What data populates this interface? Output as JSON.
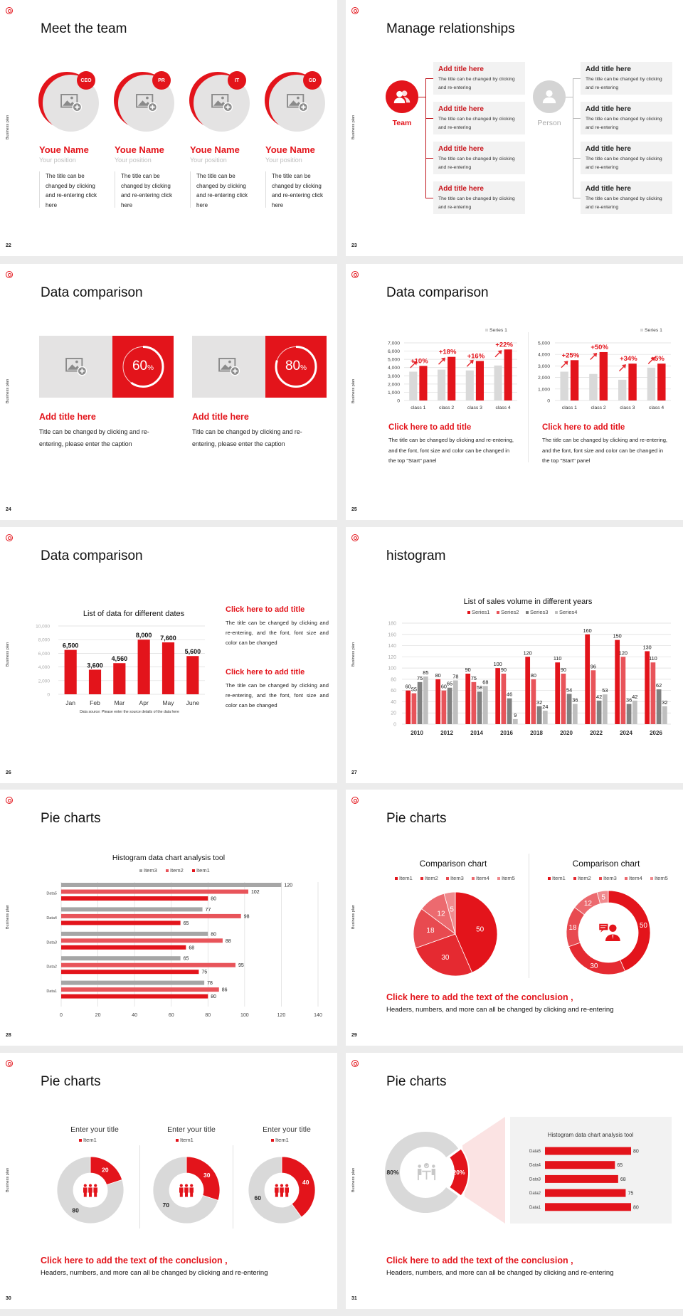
{
  "common": {
    "side_label": "Business plan",
    "colors": {
      "accent": "#e3141b",
      "accent_light": "#e8545a",
      "gray": "#d9d9d9",
      "dark_gray": "#808080",
      "panel": "#f2f2f2"
    }
  },
  "slides": [
    {
      "number": "22",
      "title": "Meet the team",
      "members": [
        {
          "badge": "CEO",
          "name": "Youe Name",
          "position": "Your position",
          "desc": "The title can be changed by clicking and re-entering click here",
          "icon": "image-placeholder-icon"
        },
        {
          "badge": "PR",
          "name": "Youe Name",
          "position": "Your position",
          "desc": "The title can be changed by clicking and re-entering click here",
          "icon": "image-placeholder-icon"
        },
        {
          "badge": "IT",
          "name": "Youe Name",
          "position": "Your position",
          "desc": "The title can be changed by clicking and re-entering click here",
          "icon": "image-placeholder-icon"
        },
        {
          "badge": "GD",
          "name": "Youe Name",
          "position": "Your position",
          "desc": "The title can be changed by clicking and re-entering click here",
          "icon": "image-placeholder-icon"
        }
      ]
    },
    {
      "number": "23",
      "title": "Manage relationships",
      "team_label": "Team",
      "person_label": "Person",
      "team_items": [
        {
          "title": "Add title here",
          "desc": "The title can be changed by clicking and re-entering"
        },
        {
          "title": "Add title here",
          "desc": "The title can be changed by clicking and re-entering"
        },
        {
          "title": "Add title here",
          "desc": "The title can be changed by clicking and re-entering"
        },
        {
          "title": "Add title here",
          "desc": "The title can be changed by clicking and re-entering"
        }
      ],
      "person_items": [
        {
          "title": "Add title here",
          "desc": "The title can be changed by clicking and re-entering"
        },
        {
          "title": "Add title here",
          "desc": "The title can be changed by clicking and re-entering"
        },
        {
          "title": "Add title here",
          "desc": "The title can be changed by clicking and re-entering"
        },
        {
          "title": "Add title here",
          "desc": "The title can be changed by clicking and re-entering"
        }
      ]
    },
    {
      "number": "24",
      "title": "Data comparison",
      "cards": [
        {
          "value": 60,
          "number": "60",
          "unit": "%",
          "title": "Add title here",
          "desc": "Title can be changed by clicking and re-entering, please enter the caption"
        },
        {
          "value": 80,
          "number": "80",
          "unit": "%",
          "title": "Add title here",
          "desc": "Title can be changed by clicking and re-entering, please enter the caption"
        }
      ]
    },
    {
      "number": "25",
      "title": "Data comparison",
      "blocks": [
        {
          "title": "Click here to add title",
          "desc": "The title can be changed by clicking and re-entering, and the font, font size and color can be changed in the top \"Start\" panel"
        },
        {
          "title": "Click here to add title",
          "desc": "The title can be changed by clicking and re-entering, and the font, font size and color can be changed in the top \"Start\" panel"
        }
      ]
    },
    {
      "number": "26",
      "title": "Data comparison",
      "blocks": [
        {
          "title": "Click here to add title",
          "desc": "The title can be changed by clicking and re-entering, and the font, font size and color can be changed"
        },
        {
          "title": "Click here to add title",
          "desc": "The title can be changed by clicking and re-entering, and the font, font size and color can be changed"
        }
      ]
    },
    {
      "number": "27",
      "title": "histogram"
    },
    {
      "number": "28",
      "title": "Pie charts"
    },
    {
      "number": "29",
      "title": "Pie charts",
      "conclusion_title": "Click here to add the text of the conclusion ,",
      "conclusion_text": "Headers, numbers, and more can all be changed by clicking and re-entering"
    },
    {
      "number": "30",
      "title": "Pie charts",
      "conclusion_title": "Click here to add the text of the conclusion ,",
      "conclusion_text": "Headers, numbers, and more can all be changed by clicking and re-entering"
    },
    {
      "number": "31",
      "title": "Pie charts",
      "conclusion_title": "Click here to add the text of the conclusion ,",
      "conclusion_text": "Headers, numbers, and more can all be changed by clicking and re-entering"
    }
  ],
  "chart_data": [
    {
      "type": "bar",
      "legend": [
        "Series 1"
      ],
      "legend_position": "top-right",
      "grid": true,
      "categories": [
        "class 1",
        "class 2",
        "class 3",
        "class 4"
      ],
      "ylim": [
        0,
        7000
      ],
      "yticks": [
        "0",
        "1,000",
        "2,000",
        "3,000",
        "4,000",
        "5,000",
        "6,000",
        "7,000"
      ],
      "series": [
        {
          "name": "Series 1",
          "color": "#d9d9d9",
          "values": [
            3500,
            3750,
            3650,
            4250
          ]
        },
        {
          "color": "#e3141b",
          "values": [
            4200,
            5300,
            4800,
            6200
          ]
        }
      ],
      "annotations": [
        "+10%",
        "+18%",
        "+16%",
        "+22%"
      ]
    },
    {
      "type": "bar",
      "legend": [
        "Series 1"
      ],
      "legend_position": "top-right",
      "grid": true,
      "categories": [
        "class 1",
        "class 2",
        "class 3",
        "class 4"
      ],
      "ylim": [
        0,
        5000
      ],
      "yticks": [
        "0",
        "1,000",
        "2,000",
        "3,000",
        "4,000",
        "5,000"
      ],
      "series": [
        {
          "name": "Series 1",
          "color": "#d9d9d9",
          "values": [
            2500,
            2300,
            1800,
            2850
          ]
        },
        {
          "color": "#e3141b",
          "values": [
            3500,
            4200,
            3200,
            3200
          ]
        }
      ],
      "annotations": [
        "+25%",
        "+50%",
        "+34%",
        "+5%"
      ]
    },
    {
      "type": "bar",
      "title": "List of data for different dates",
      "grid": true,
      "categories": [
        "Jan",
        "Feb",
        "Mar",
        "Apr",
        "May",
        "June"
      ],
      "ylim": [
        0,
        10000
      ],
      "yticks": [
        "0",
        "2,000",
        "4,000",
        "6,000",
        "8,000",
        "10,000"
      ],
      "series": [
        {
          "color": "#e3141b",
          "values": [
            6500,
            3600,
            4560,
            8000,
            7600,
            5600
          ],
          "labels": [
            "6,500",
            "3,600",
            "4,560",
            "8,000",
            "7,600",
            "5,600"
          ]
        }
      ],
      "source": "Data source: Please enter the source details of the data here"
    },
    {
      "type": "bar",
      "title": "List of sales volume in different years",
      "legend_position": "top",
      "grid": true,
      "categories": [
        "2010",
        "2012",
        "2014",
        "2016",
        "2018",
        "2020",
        "2022",
        "2024",
        "2026"
      ],
      "ylim": [
        0,
        180
      ],
      "yticks": [
        "0",
        "20",
        "40",
        "60",
        "80",
        "100",
        "120",
        "140",
        "160",
        "180"
      ],
      "series": [
        {
          "name": "Series1",
          "color": "#e3141b",
          "values": [
            60,
            80,
            90,
            100,
            120,
            110,
            160,
            150,
            130
          ]
        },
        {
          "name": "Series2",
          "color": "#e8545a",
          "values": [
            55,
            60,
            75,
            90,
            80,
            90,
            96,
            120,
            110
          ]
        },
        {
          "name": "Series3",
          "color": "#808080",
          "values": [
            75,
            65,
            58,
            46,
            32,
            54,
            42,
            36,
            62
          ]
        },
        {
          "name": "Series4",
          "color": "#bfbfbf",
          "values": [
            85,
            78,
            68,
            9,
            24,
            36,
            53,
            42,
            32
          ]
        }
      ]
    },
    {
      "type": "bar",
      "orientation": "horizontal",
      "title": "Histogram data chart analysis tool",
      "legend_position": "top",
      "grid": true,
      "categories": [
        "Data5",
        "Data4",
        "Data3",
        "Data2",
        "Data1"
      ],
      "xlim": [
        0,
        140
      ],
      "xticks": [
        "0",
        "20",
        "40",
        "60",
        "80",
        "100",
        "120",
        "140"
      ],
      "series": [
        {
          "name": "Item3",
          "color": "#a6a6a6",
          "values": [
            120,
            77,
            80,
            65,
            78
          ]
        },
        {
          "name": "Item2",
          "color": "#e8545a",
          "values": [
            102,
            98,
            88,
            95,
            86
          ]
        },
        {
          "name": "Item1",
          "color": "#e3141b",
          "values": [
            80,
            65,
            68,
            75,
            80
          ]
        }
      ]
    },
    {
      "type": "pie",
      "title": "Comparison chart",
      "legend": [
        "Item1",
        "Item2",
        "Item3",
        "Item4",
        "Item5"
      ],
      "legend_position": "top",
      "values": [
        50,
        30,
        18,
        12,
        5
      ],
      "colors": [
        "#e3141b",
        "#e52a31",
        "#e84a50",
        "#ec6a6f",
        "#f08a8e"
      ]
    },
    {
      "type": "pie",
      "variant": "donut",
      "title": "Comparison chart",
      "legend": [
        "Item1",
        "Item2",
        "Item3",
        "Item4",
        "Item5"
      ],
      "legend_position": "top",
      "values": [
        50,
        30,
        18,
        12,
        5
      ],
      "colors": [
        "#e3141b",
        "#e52a31",
        "#e84a50",
        "#ec6a6f",
        "#f08a8e"
      ],
      "center_icon": "presenter-icon"
    },
    {
      "type": "pie",
      "variant": "donut",
      "title": "Enter your title",
      "legend": [
        "Item1"
      ],
      "values": [
        20,
        80
      ],
      "colors": [
        "#e3141b",
        "#d9d9d9"
      ],
      "center_icon": "team-people-icon"
    },
    {
      "type": "pie",
      "variant": "donut",
      "title": "Enter your title",
      "legend": [
        "Item1"
      ],
      "values": [
        30,
        70
      ],
      "colors": [
        "#e3141b",
        "#d9d9d9"
      ],
      "center_icon": "team-people-icon"
    },
    {
      "type": "pie",
      "variant": "donut",
      "title": "Enter your title",
      "legend": [
        "Item1"
      ],
      "values": [
        40,
        60
      ],
      "colors": [
        "#e3141b",
        "#d9d9d9"
      ],
      "center_icon": "team-people-icon"
    },
    {
      "type": "pie",
      "variant": "donut",
      "values": [
        20,
        80
      ],
      "labels": [
        "20%",
        "80%"
      ],
      "colors": [
        "#e3141b",
        "#d9d9d9"
      ],
      "center_icon": "meeting-icon"
    },
    {
      "type": "bar",
      "orientation": "horizontal",
      "title": "Histogram data chart analysis tool",
      "categories": [
        "Data5",
        "Data4",
        "Data3",
        "Data2",
        "Data1"
      ],
      "xlim": [
        0,
        80
      ],
      "series": [
        {
          "color": "#e3141b",
          "values": [
            80,
            65,
            68,
            75,
            80
          ]
        }
      ]
    }
  ]
}
